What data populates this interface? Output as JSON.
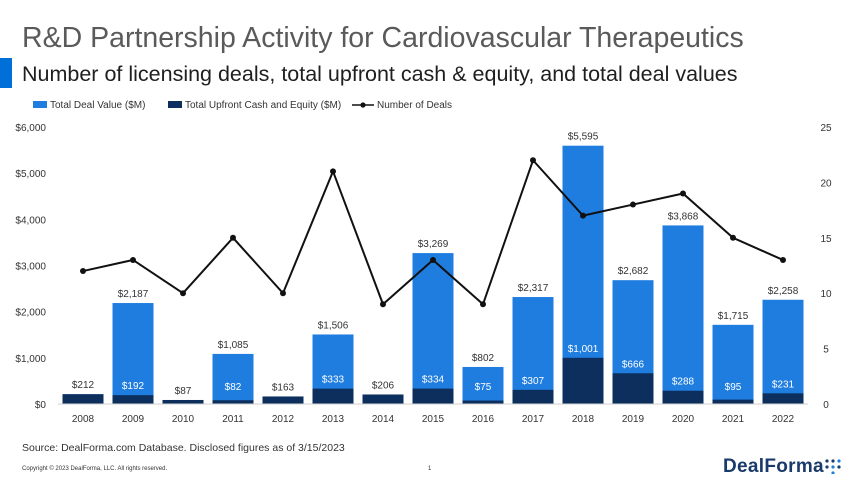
{
  "header": {
    "title": "R&D Partnership Activity for Cardiovascular Therapeutics",
    "subtitle": "Number of licensing deals, total upfront cash & equity, and total deal values"
  },
  "footer": {
    "source": "Source: DealForma.com Database. Disclosed figures as of 3/15/2023",
    "copyright": "Copyright © 2023 DealForma, LLC. All rights reserved.",
    "page_number": "1",
    "logo_text": "DealForma"
  },
  "colors": {
    "total_deal_value": "#1f7de0",
    "upfront": "#0d2f5e",
    "deals_line": "#111111"
  },
  "chart_data": {
    "type": "bar",
    "categories": [
      "2008",
      "2009",
      "2010",
      "2011",
      "2012",
      "2013",
      "2014",
      "2015",
      "2016",
      "2017",
      "2018",
      "2019",
      "2020",
      "2021",
      "2022"
    ],
    "series": [
      {
        "name": "Total Deal Value ($M)",
        "type": "bar",
        "axis": "left",
        "values": [
          212,
          2187,
          87,
          1085,
          163,
          1506,
          206,
          3269,
          802,
          2317,
          5595,
          2682,
          3868,
          1715,
          2258
        ]
      },
      {
        "name": "Total Upfront Cash and Equity ($M)",
        "type": "bar",
        "axis": "left",
        "values": [
          212,
          192,
          87,
          82,
          163,
          333,
          206,
          334,
          75,
          307,
          1001,
          666,
          288,
          95,
          231
        ]
      },
      {
        "name": "Number of Deals",
        "type": "line",
        "axis": "right",
        "values": [
          12,
          13,
          10,
          15,
          10,
          21,
          9,
          13,
          9,
          22,
          17,
          18,
          19,
          15,
          13
        ]
      }
    ],
    "total_labels": [
      "",
      "$2,187",
      "",
      "$1,085",
      "",
      "$1,506",
      "",
      "$3,269",
      "$802",
      "$2,317",
      "$5,595",
      "$2,682",
      "$3,868",
      "$1,715",
      "$2,258"
    ],
    "upfront_labels": [
      "$212",
      "$192",
      "$87",
      "$82",
      "$163",
      "$333",
      "$206",
      "$334",
      "$75",
      "$307",
      "$1,001",
      "$666",
      "$288",
      "$95",
      "$231"
    ],
    "y_left": {
      "min": 0,
      "max": 6000,
      "ticks": [
        0,
        1000,
        2000,
        3000,
        4000,
        5000,
        6000
      ],
      "tick_labels": [
        "$0",
        "$1,000",
        "$2,000",
        "$3,000",
        "$4,000",
        "$5,000",
        "$6,000"
      ]
    },
    "y_right": {
      "min": 0,
      "max": 25,
      "ticks": [
        0,
        5,
        10,
        15,
        20,
        25
      ],
      "tick_labels": [
        "0",
        "5",
        "10",
        "15",
        "20",
        "25"
      ]
    },
    "legend_position": "top-left",
    "grid": false
  }
}
